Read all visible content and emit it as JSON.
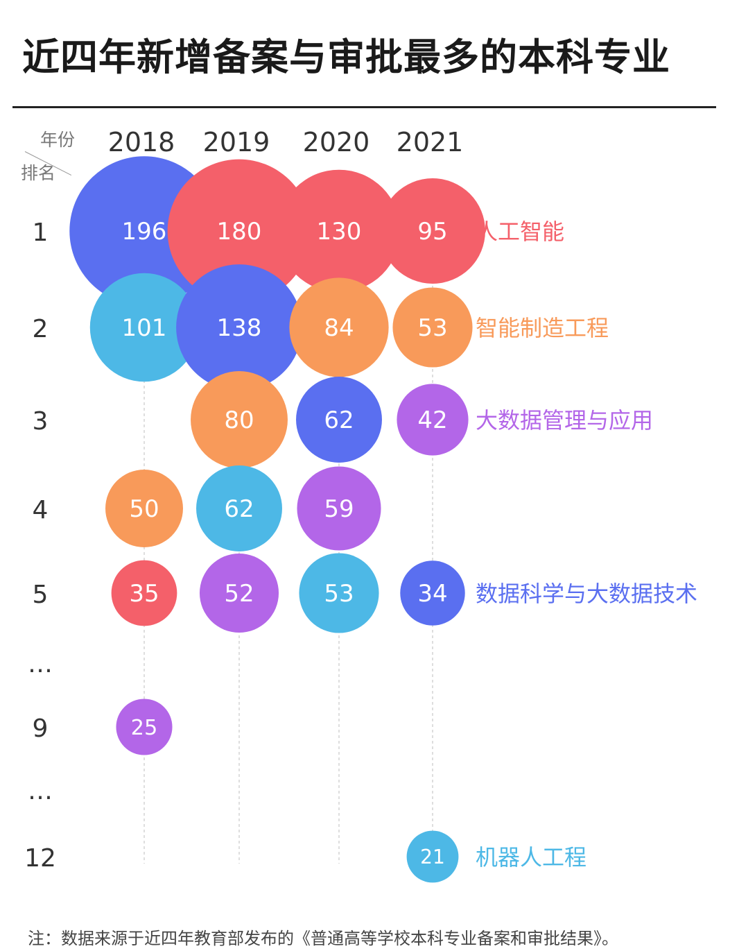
{
  "title": "近四年新增备案与审批最多的本科专业",
  "corner": {
    "year_label": "年份",
    "rank_label": "排名"
  },
  "footnote": "注：数据来源于近四年教育部发布的《普通高等学校本科专业备案和审批结果》。",
  "chart_data": {
    "type": "scatter",
    "title": "近四年新增备案与审批最多的本科专业",
    "x_label": "年份",
    "y_label": "排名",
    "years": [
      "2018",
      "2019",
      "2020",
      "2021"
    ],
    "rank_labels": [
      {
        "label": "1",
        "row": 0
      },
      {
        "label": "2",
        "row": 1
      },
      {
        "label": "3",
        "row": 2
      },
      {
        "label": "4",
        "row": 3
      },
      {
        "label": "5",
        "row": 4
      },
      {
        "label": "…",
        "row": 5
      },
      {
        "label": "9",
        "row": 6
      },
      {
        "label": "…",
        "row": 7
      },
      {
        "label": "12",
        "row": 8
      }
    ],
    "majors": [
      {
        "name": "人工智能",
        "color": "#f4606a"
      },
      {
        "name": "智能制造工程",
        "color": "#f89a5a"
      },
      {
        "name": "大数据管理与应用",
        "color": "#b366e8"
      },
      {
        "name": "数据科学与大数据技术",
        "color": "#5a6ff0"
      },
      {
        "name": "机器人工程",
        "color": "#4db8e6"
      }
    ],
    "points": [
      {
        "year": "2018",
        "rank": "1",
        "value": 196,
        "major": "数据科学与大数据技术"
      },
      {
        "year": "2018",
        "rank": "2",
        "value": 101,
        "major": "机器人工程"
      },
      {
        "year": "2018",
        "rank": "4",
        "value": 50,
        "major": "智能制造工程"
      },
      {
        "year": "2018",
        "rank": "5",
        "value": 35,
        "major": "人工智能"
      },
      {
        "year": "2018",
        "rank": "9",
        "value": 25,
        "major": "大数据管理与应用"
      },
      {
        "year": "2019",
        "rank": "1",
        "value": 180,
        "major": "人工智能"
      },
      {
        "year": "2019",
        "rank": "2",
        "value": 138,
        "major": "数据科学与大数据技术"
      },
      {
        "year": "2019",
        "rank": "3",
        "value": 80,
        "major": "智能制造工程"
      },
      {
        "year": "2019",
        "rank": "4",
        "value": 62,
        "major": "机器人工程"
      },
      {
        "year": "2019",
        "rank": "5",
        "value": 52,
        "major": "大数据管理与应用"
      },
      {
        "year": "2020",
        "rank": "1",
        "value": 130,
        "major": "人工智能"
      },
      {
        "year": "2020",
        "rank": "2",
        "value": 84,
        "major": "智能制造工程"
      },
      {
        "year": "2020",
        "rank": "3",
        "value": 62,
        "major": "数据科学与大数据技术"
      },
      {
        "year": "2020",
        "rank": "4",
        "value": 59,
        "major": "大数据管理与应用"
      },
      {
        "year": "2020",
        "rank": "5",
        "value": 53,
        "major": "机器人工程"
      },
      {
        "year": "2021",
        "rank": "1",
        "value": 95,
        "major": "人工智能"
      },
      {
        "year": "2021",
        "rank": "2",
        "value": 53,
        "major": "智能制造工程"
      },
      {
        "year": "2021",
        "rank": "3",
        "value": 42,
        "major": "大数据管理与应用"
      },
      {
        "year": "2021",
        "rank": "5",
        "value": 34,
        "major": "数据科学与大数据技术"
      },
      {
        "year": "2021",
        "rank": "12",
        "value": 21,
        "major": "机器人工程"
      }
    ],
    "end_labels": [
      {
        "rank": "1",
        "major": "人工智能"
      },
      {
        "rank": "2",
        "major": "智能制造工程"
      },
      {
        "rank": "3",
        "major": "大数据管理与应用"
      },
      {
        "rank": "5",
        "major": "数据科学与大数据技术"
      },
      {
        "rank": "12",
        "major": "机器人工程"
      }
    ],
    "legend": "none",
    "grid": false
  }
}
